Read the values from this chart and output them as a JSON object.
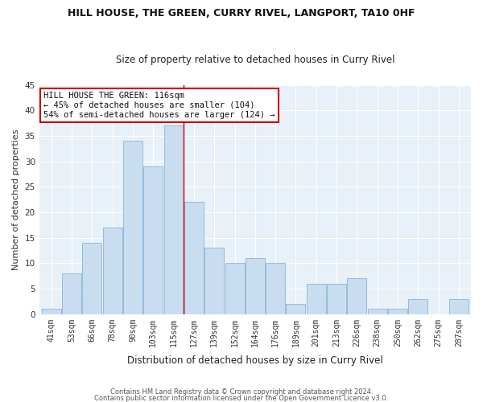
{
  "title": "HILL HOUSE, THE GREEN, CURRY RIVEL, LANGPORT, TA10 0HF",
  "subtitle": "Size of property relative to detached houses in Curry Rivel",
  "xlabel": "Distribution of detached houses by size in Curry Rivel",
  "ylabel": "Number of detached properties",
  "categories": [
    "41sqm",
    "53sqm",
    "66sqm",
    "78sqm",
    "90sqm",
    "103sqm",
    "115sqm",
    "127sqm",
    "139sqm",
    "152sqm",
    "164sqm",
    "176sqm",
    "189sqm",
    "201sqm",
    "213sqm",
    "226sqm",
    "238sqm",
    "250sqm",
    "262sqm",
    "275sqm",
    "287sqm"
  ],
  "values": [
    1,
    8,
    14,
    17,
    34,
    29,
    37,
    22,
    13,
    10,
    11,
    10,
    2,
    6,
    6,
    7,
    1,
    1,
    3,
    0,
    3
  ],
  "bar_color": "#c9ddf0",
  "bar_edge_color": "#8ab4d8",
  "highlight_bar_index": 6,
  "annotation_line1": "HILL HOUSE THE GREEN: 116sqm",
  "annotation_line2": "← 45% of detached houses are smaller (104)",
  "annotation_line3": "54% of semi-detached houses are larger (124) →",
  "annotation_box_color": "#ffffff",
  "annotation_box_edge": "#cc0000",
  "ylim": [
    0,
    45
  ],
  "yticks": [
    0,
    5,
    10,
    15,
    20,
    25,
    30,
    35,
    40,
    45
  ],
  "bg_color": "#e8f0f8",
  "fig_bg_color": "#ffffff",
  "grid_color": "#ffffff",
  "footer1": "Contains HM Land Registry data © Crown copyright and database right 2024.",
  "footer2": "Contains public sector information licensed under the Open Government Licence v3.0."
}
